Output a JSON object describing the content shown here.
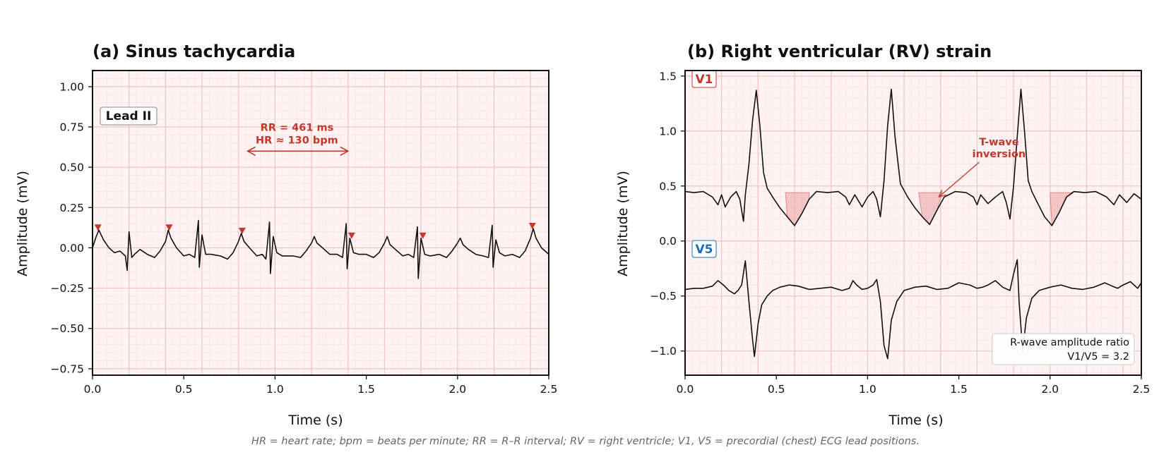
{
  "chart_data": [
    {
      "type": "line",
      "title": "(a) Sinus tachycardia",
      "xlabel": "Time (s)",
      "ylabel": "Amplitude (mV)",
      "xlim": [
        0,
        2.5
      ],
      "ylim": [
        -0.79,
        1.1
      ],
      "x_ticks": [
        "0.0",
        "0.5",
        "1.0",
        "1.5",
        "2.0",
        "2.5"
      ],
      "y_ticks": [
        "−0.75",
        "−0.50",
        "−0.25",
        "0.00",
        "0.25",
        "0.50",
        "0.75",
        "1.00"
      ],
      "x_tick_values": [
        0,
        0.5,
        1.0,
        1.5,
        2.0,
        2.5
      ],
      "y_tick_values": [
        -0.75,
        -0.5,
        -0.25,
        0,
        0.25,
        0.5,
        0.75,
        1.0
      ],
      "grid": "on",
      "lead_label": "Lead II",
      "series": [
        {
          "x": [
            0.0,
            0.02,
            0.035,
            0.06,
            0.09,
            0.12,
            0.15,
            0.18,
            0.19,
            0.2,
            0.215,
            0.23,
            0.26,
            0.3,
            0.34,
            0.37,
            0.4,
            0.415,
            0.43,
            0.46,
            0.5,
            0.53,
            0.56,
            0.58,
            0.585,
            0.6,
            0.62,
            0.65,
            0.7,
            0.74,
            0.77,
            0.8,
            0.815,
            0.83,
            0.86,
            0.9,
            0.93,
            0.95,
            0.97,
            0.975,
            0.99,
            1.01,
            1.04,
            1.1,
            1.14,
            1.17,
            1.2,
            1.215,
            1.23,
            1.26,
            1.3,
            1.34,
            1.37,
            1.39,
            1.395,
            1.41,
            1.43,
            1.46,
            1.5,
            1.54,
            1.57,
            1.6,
            1.615,
            1.63,
            1.66,
            1.7,
            1.73,
            1.76,
            1.78,
            1.785,
            1.8,
            1.82,
            1.85,
            1.9,
            1.94,
            1.97,
            2.0,
            2.015,
            2.03,
            2.06,
            2.1,
            2.14,
            2.17,
            2.19,
            2.195,
            2.21,
            2.23,
            2.26,
            2.3,
            2.34,
            2.37,
            2.4,
            2.415,
            2.43,
            2.46,
            2.5
          ],
          "y": [
            0.0,
            0.07,
            0.11,
            0.05,
            0.0,
            -0.03,
            -0.02,
            -0.05,
            -0.14,
            0.1,
            -0.06,
            -0.04,
            -0.01,
            -0.04,
            -0.06,
            -0.02,
            0.04,
            0.11,
            0.06,
            0.0,
            -0.05,
            -0.04,
            -0.06,
            0.17,
            -0.12,
            0.08,
            -0.04,
            -0.04,
            -0.05,
            -0.07,
            -0.03,
            0.04,
            0.09,
            0.04,
            0.0,
            -0.05,
            -0.04,
            -0.07,
            0.16,
            -0.16,
            0.07,
            -0.03,
            -0.05,
            -0.05,
            -0.06,
            -0.02,
            0.03,
            0.07,
            0.03,
            0.0,
            -0.04,
            -0.04,
            -0.06,
            0.15,
            -0.13,
            0.06,
            -0.03,
            -0.04,
            -0.04,
            -0.06,
            -0.03,
            0.03,
            0.07,
            0.02,
            -0.01,
            -0.05,
            -0.04,
            -0.06,
            0.13,
            -0.19,
            0.06,
            -0.04,
            -0.05,
            -0.04,
            -0.06,
            -0.02,
            0.03,
            0.06,
            0.02,
            -0.01,
            -0.04,
            -0.05,
            -0.06,
            0.14,
            -0.12,
            0.05,
            -0.03,
            -0.05,
            -0.04,
            -0.06,
            -0.02,
            0.06,
            0.12,
            0.06,
            0.0,
            -0.04
          ]
        }
      ],
      "r_peak_markers": {
        "x": [
          0.03,
          0.42,
          0.82,
          1.42,
          1.81,
          2.41
        ],
        "y": [
          0.11,
          0.11,
          0.09,
          0.06,
          0.06,
          0.12
        ]
      },
      "annotations": [
        {
          "text": [
            "RR = 461 ms",
            "HR ≈ 130 bpm"
          ],
          "arrow_x": [
            0.85,
            1.4
          ],
          "arrow_y": 0.6,
          "text_x": 1.12,
          "text_y": 0.7
        }
      ],
      "colors": {
        "trace": "#111111",
        "marker": "#c0392b",
        "annotation": "#c0392b",
        "grid_major": "#f2c4c4",
        "grid_minor": "#fbe3e3",
        "background": "#fff3f3"
      }
    },
    {
      "type": "line",
      "title": "(b) Right ventricular (RV) strain",
      "xlabel": "Time (s)",
      "ylabel": "Amplitude (mV)",
      "xlim": [
        0,
        2.5
      ],
      "ylim": [
        -1.22,
        1.55
      ],
      "x_ticks": [
        "0.0",
        "0.5",
        "1.0",
        "1.5",
        "2.0",
        "2.5"
      ],
      "y_ticks": [
        "−1.0",
        "−0.5",
        "0.0",
        "0.5",
        "1.0",
        "1.5"
      ],
      "x_tick_values": [
        0,
        0.5,
        1.0,
        1.5,
        2.0,
        2.5
      ],
      "y_tick_values": [
        -1.0,
        -0.5,
        0,
        0.5,
        1.0,
        1.5
      ],
      "grid": "on",
      "leads": [
        {
          "name": "V1",
          "color": "#c0392b",
          "x": [
            0.0,
            0.05,
            0.1,
            0.15,
            0.18,
            0.2,
            0.22,
            0.25,
            0.28,
            0.3,
            0.32,
            0.33,
            0.35,
            0.37,
            0.39,
            0.41,
            0.43,
            0.45,
            0.48,
            0.52,
            0.56,
            0.6,
            0.64,
            0.68,
            0.72,
            0.78,
            0.84,
            0.88,
            0.9,
            0.93,
            0.97,
            1.0,
            1.03,
            1.05,
            1.07,
            1.09,
            1.11,
            1.13,
            1.15,
            1.18,
            1.22,
            1.26,
            1.3,
            1.34,
            1.38,
            1.42,
            1.48,
            1.54,
            1.58,
            1.6,
            1.62,
            1.66,
            1.7,
            1.74,
            1.76,
            1.78,
            1.8,
            1.82,
            1.84,
            1.86,
            1.88,
            1.9,
            1.93,
            1.97,
            2.01,
            2.05,
            2.09,
            2.13,
            2.19,
            2.25,
            2.31,
            2.35,
            2.38,
            2.42,
            2.46,
            2.5
          ],
          "y": [
            0.45,
            0.44,
            0.45,
            0.4,
            0.33,
            0.42,
            0.31,
            0.4,
            0.45,
            0.38,
            0.18,
            0.42,
            0.7,
            1.1,
            1.37,
            1.05,
            0.62,
            0.48,
            0.4,
            0.3,
            0.22,
            0.14,
            0.25,
            0.38,
            0.45,
            0.44,
            0.45,
            0.4,
            0.33,
            0.42,
            0.31,
            0.4,
            0.45,
            0.38,
            0.22,
            0.55,
            1.05,
            1.38,
            0.95,
            0.52,
            0.4,
            0.3,
            0.22,
            0.15,
            0.28,
            0.4,
            0.45,
            0.44,
            0.4,
            0.33,
            0.42,
            0.34,
            0.4,
            0.45,
            0.35,
            0.2,
            0.5,
            0.95,
            1.38,
            1.0,
            0.55,
            0.45,
            0.35,
            0.22,
            0.14,
            0.26,
            0.4,
            0.45,
            0.44,
            0.45,
            0.4,
            0.33,
            0.42,
            0.35,
            0.43,
            0.38
          ]
        },
        {
          "name": "V5",
          "color": "#1f6fb2",
          "x": [
            0.0,
            0.05,
            0.1,
            0.15,
            0.18,
            0.21,
            0.24,
            0.27,
            0.29,
            0.31,
            0.33,
            0.35,
            0.37,
            0.38,
            0.4,
            0.42,
            0.45,
            0.48,
            0.52,
            0.57,
            0.62,
            0.68,
            0.74,
            0.8,
            0.86,
            0.9,
            0.92,
            0.94,
            0.97,
            1.0,
            1.03,
            1.05,
            1.07,
            1.09,
            1.11,
            1.13,
            1.16,
            1.2,
            1.26,
            1.32,
            1.38,
            1.44,
            1.5,
            1.56,
            1.6,
            1.63,
            1.66,
            1.7,
            1.74,
            1.78,
            1.8,
            1.82,
            1.83,
            1.85,
            1.87,
            1.9,
            1.94,
            2.0,
            2.06,
            2.12,
            2.18,
            2.24,
            2.3,
            2.34,
            2.37,
            2.4,
            2.44,
            2.48,
            2.5
          ],
          "y": [
            -0.44,
            -0.43,
            -0.43,
            -0.41,
            -0.36,
            -0.4,
            -0.45,
            -0.48,
            -0.45,
            -0.4,
            -0.18,
            -0.55,
            -0.9,
            -1.05,
            -0.75,
            -0.58,
            -0.5,
            -0.45,
            -0.42,
            -0.4,
            -0.41,
            -0.44,
            -0.43,
            -0.42,
            -0.45,
            -0.43,
            -0.36,
            -0.4,
            -0.44,
            -0.43,
            -0.4,
            -0.35,
            -0.55,
            -0.95,
            -1.07,
            -0.72,
            -0.55,
            -0.45,
            -0.42,
            -0.41,
            -0.44,
            -0.43,
            -0.38,
            -0.4,
            -0.43,
            -0.42,
            -0.4,
            -0.36,
            -0.42,
            -0.45,
            -0.3,
            -0.17,
            -0.55,
            -1.0,
            -0.7,
            -0.52,
            -0.45,
            -0.42,
            -0.4,
            -0.43,
            -0.44,
            -0.42,
            -0.38,
            -0.41,
            -0.43,
            -0.4,
            -0.37,
            -0.43,
            -0.38
          ]
        }
      ],
      "t_wave_shading": [
        {
          "x0": 0.55,
          "x1": 0.68,
          "y_top": 0.44
        },
        {
          "x0": 1.28,
          "x1": 1.41,
          "y_top": 0.44
        },
        {
          "x0": 2.0,
          "x1": 2.13,
          "y_top": 0.44
        }
      ],
      "annotations": [
        {
          "text": [
            "T-wave",
            "inversion"
          ],
          "text_x": 1.72,
          "text_y": 0.87,
          "arrow_to_x": 1.39,
          "arrow_to_y": 0.4
        }
      ],
      "ratio_box": [
        "R-wave amplitude ratio",
        "V1/V5 = 3.2"
      ],
      "colors": {
        "trace": "#111111",
        "annotation": "#c0392b",
        "shade": "#e8a0a0",
        "grid_major": "#f2c4c4",
        "grid_minor": "#fbe3e3",
        "background": "#fff3f3"
      }
    }
  ],
  "footnote": "HR = heart rate; bpm = beats per minute; RR = R–R interval; RV = right ventricle; V1, V5 = precordial (chest) ECG lead positions."
}
